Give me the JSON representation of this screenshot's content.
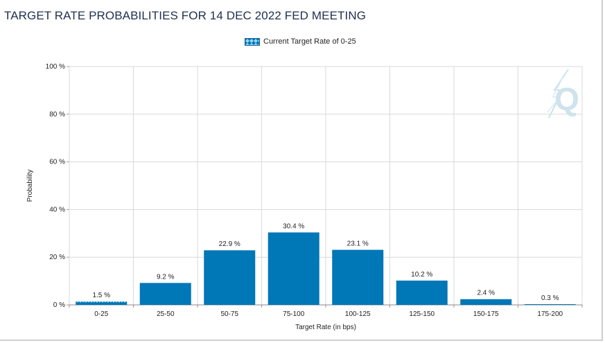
{
  "header": {
    "title": "TARGET RATE PROBABILITIES FOR 14 DEC 2022 FED MEETING"
  },
  "legend": {
    "label": "Current Target Rate of 0-25"
  },
  "watermark": {
    "letter": "Q"
  },
  "colors": {
    "bar": "#0077b6",
    "bar_dark": "#0a5fa0",
    "grid": "#d9d9d9",
    "title": "#1f2f4f"
  },
  "chart_data": {
    "type": "bar",
    "title": "TARGET RATE PROBABILITIES FOR 14 DEC 2022 FED MEETING",
    "xlabel": "Target Rate (in bps)",
    "ylabel": "Probability",
    "ylim": [
      0,
      100
    ],
    "yticks": [
      0,
      20,
      40,
      60,
      80,
      100
    ],
    "ytick_labels": [
      "0 %",
      "20 %",
      "40 %",
      "60 %",
      "80 %",
      "100 %"
    ],
    "categories": [
      "0-25",
      "25-50",
      "50-75",
      "75-100",
      "100-125",
      "125-150",
      "150-175",
      "175-200"
    ],
    "values": [
      1.5,
      9.2,
      22.9,
      30.4,
      23.1,
      10.2,
      2.4,
      0.3
    ],
    "data_labels": [
      "1.5 %",
      "9.2 %",
      "22.9 %",
      "30.4 %",
      "23.1 %",
      "10.2 %",
      "2.4 %",
      "0.3 %"
    ],
    "highlight_category": "0-25",
    "grid": true
  }
}
